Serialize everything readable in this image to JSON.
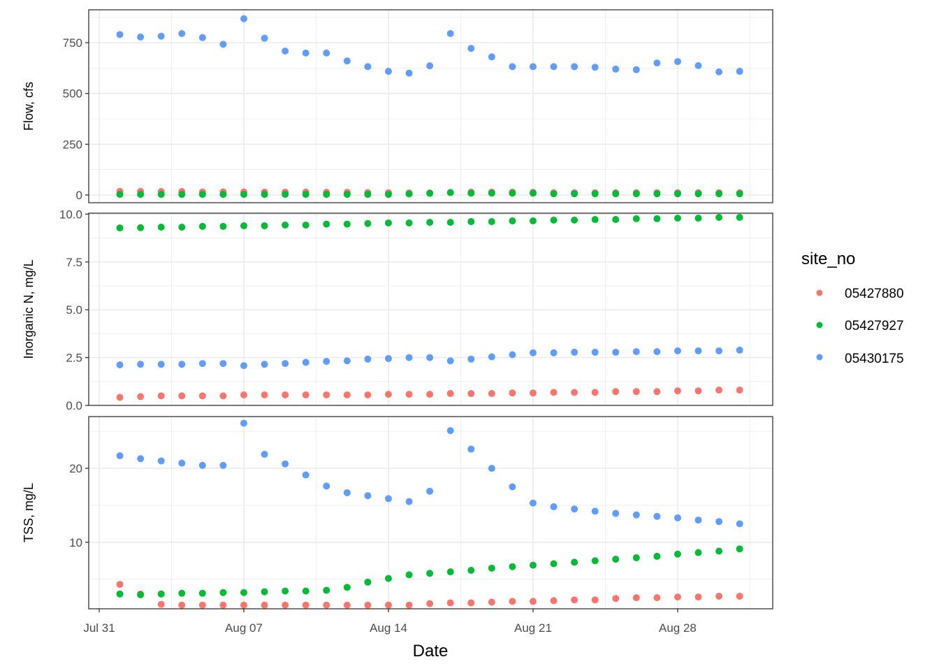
{
  "chart_data": {
    "type": "scatter",
    "facet_layout": "rows",
    "x": [
      "Aug 01",
      "Aug 02",
      "Aug 03",
      "Aug 04",
      "Aug 05",
      "Aug 06",
      "Aug 07",
      "Aug 08",
      "Aug 09",
      "Aug 10",
      "Aug 11",
      "Aug 12",
      "Aug 13",
      "Aug 14",
      "Aug 15",
      "Aug 16",
      "Aug 17",
      "Aug 18",
      "Aug 19",
      "Aug 20",
      "Aug 21",
      "Aug 22",
      "Aug 23",
      "Aug 24",
      "Aug 25",
      "Aug 26",
      "Aug 27",
      "Aug 28",
      "Aug 29",
      "Aug 30",
      "Aug 31"
    ],
    "xlabel": "Date",
    "x_ticks": [
      "Jul 31",
      "Aug 07",
      "Aug 14",
      "Aug 21",
      "Aug 28"
    ],
    "legend": {
      "title": "site_no",
      "position": "right",
      "entries": [
        {
          "label": "05427880",
          "color": "#F8766D"
        },
        {
          "label": "05427927",
          "color": "#00BA38"
        },
        {
          "label": "05430175",
          "color": "#619CFF"
        }
      ]
    },
    "grid": true,
    "panels": [
      {
        "ylabel": "Flow, cfs",
        "yticks": [
          "0",
          "250",
          "500",
          "750"
        ],
        "ylim": [
          -38,
          912
        ],
        "series": [
          {
            "name": "05427880",
            "values": [
              18,
              18,
              17,
              17,
              15,
              15,
              15,
              14,
              14,
              14,
              13,
              13,
              12,
              11,
              10,
              10,
              12,
              14,
              14,
              14,
              13,
              11,
              11,
              11,
              11,
              11,
              11,
              11,
              11,
              11,
              11
            ]
          },
          {
            "name": "05427927",
            "values": [
              3,
              3,
              3,
              3,
              3,
              3,
              3,
              3,
              3,
              3,
              3,
              3,
              3,
              3,
              5,
              8,
              12,
              9,
              9,
              9,
              9,
              6,
              6,
              6,
              6,
              6,
              6,
              6,
              6,
              6,
              6
            ]
          },
          {
            "name": "05430175",
            "values": [
              790,
              778,
              782,
              795,
              775,
              742,
              868,
              772,
              709,
              699,
              699,
              660,
              632,
              609,
              600,
              636,
              795,
              722,
              680,
              632,
              632,
              632,
              632,
              629,
              620,
              617,
              650,
              657,
              637,
              606,
              609
            ]
          }
        ]
      },
      {
        "ylabel": "Inorganic N, mg/L",
        "yticks": [
          "0.0",
          "2.5",
          "5.0",
          "7.5",
          "10.0"
        ],
        "ylim": [
          0,
          10.05
        ],
        "series": [
          {
            "name": "05427880",
            "values": [
              0.42,
              0.46,
              0.5,
              0.5,
              0.5,
              0.5,
              0.55,
              0.55,
              0.55,
              0.55,
              0.55,
              0.55,
              0.55,
              0.58,
              0.58,
              0.58,
              0.62,
              0.62,
              0.62,
              0.65,
              0.65,
              0.68,
              0.68,
              0.68,
              0.72,
              0.72,
              0.72,
              0.76,
              0.76,
              0.8,
              0.8
            ]
          },
          {
            "name": "05427927",
            "values": [
              9.28,
              9.29,
              9.32,
              9.32,
              9.36,
              9.36,
              9.39,
              9.39,
              9.43,
              9.43,
              9.48,
              9.48,
              9.51,
              9.54,
              9.54,
              9.57,
              9.57,
              9.61,
              9.61,
              9.65,
              9.65,
              9.69,
              9.69,
              9.72,
              9.72,
              9.76,
              9.76,
              9.79,
              9.79,
              9.83,
              9.83
            ]
          },
          {
            "name": "05430175",
            "values": [
              2.12,
              2.15,
              2.15,
              2.15,
              2.19,
              2.19,
              2.08,
              2.15,
              2.19,
              2.25,
              2.3,
              2.33,
              2.42,
              2.45,
              2.5,
              2.5,
              2.33,
              2.42,
              2.54,
              2.65,
              2.75,
              2.75,
              2.78,
              2.78,
              2.78,
              2.81,
              2.81,
              2.85,
              2.85,
              2.85,
              2.89
            ]
          }
        ]
      },
      {
        "ylabel": "TSS, mg/L",
        "yticks": [
          "10",
          "20"
        ],
        "ylim": [
          1.0,
          27.0
        ],
        "series": [
          {
            "name": "05427880",
            "values": [
              4.3,
              3.0,
              1.6,
              1.5,
              1.5,
              1.5,
              1.5,
              1.5,
              1.5,
              1.5,
              1.5,
              1.5,
              1.5,
              1.5,
              1.5,
              1.7,
              1.8,
              1.8,
              1.9,
              2.0,
              2.0,
              2.1,
              2.2,
              2.2,
              2.4,
              2.5,
              2.5,
              2.6,
              2.6,
              2.7,
              2.7
            ]
          },
          {
            "name": "05427927",
            "values": [
              3.0,
              2.9,
              3.0,
              3.1,
              3.1,
              3.2,
              3.2,
              3.3,
              3.4,
              3.4,
              3.5,
              3.9,
              4.6,
              5.1,
              5.6,
              5.8,
              6.0,
              6.2,
              6.5,
              6.7,
              6.9,
              7.1,
              7.3,
              7.5,
              7.7,
              7.9,
              8.1,
              8.4,
              8.6,
              8.8,
              9.1
            ]
          },
          {
            "name": "05430175",
            "values": [
              21.7,
              21.3,
              21.0,
              20.7,
              20.4,
              20.4,
              26.1,
              21.9,
              20.6,
              19.1,
              17.6,
              16.7,
              16.3,
              15.9,
              15.5,
              16.9,
              25.1,
              22.6,
              20.0,
              17.5,
              15.3,
              14.8,
              14.5,
              14.2,
              13.9,
              13.7,
              13.5,
              13.3,
              13.0,
              12.8,
              12.5
            ]
          }
        ]
      }
    ]
  }
}
